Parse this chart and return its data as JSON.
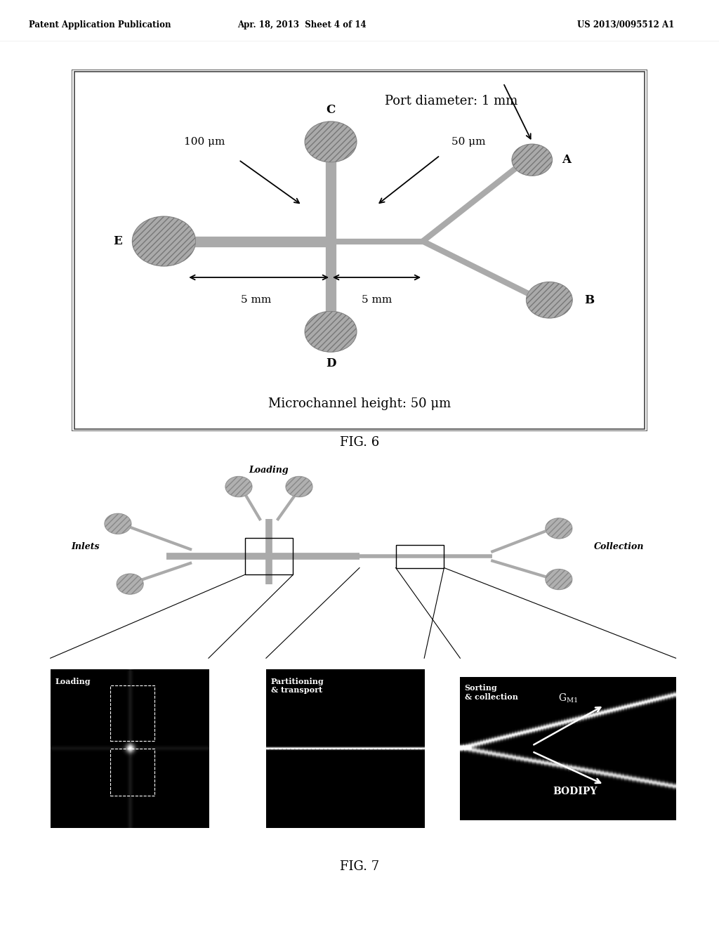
{
  "header_left": "Patent Application Publication",
  "header_mid": "Apr. 18, 2013  Sheet 4 of 14",
  "header_right": "US 2013/0095512 A1",
  "fig6_title": "FIG. 6",
  "fig7_title": "FIG. 7",
  "bg_color": "#ffffff",
  "node_color": "#aaaaaa",
  "chan_color": "#aaaaaa",
  "box_color": "#dddddd"
}
